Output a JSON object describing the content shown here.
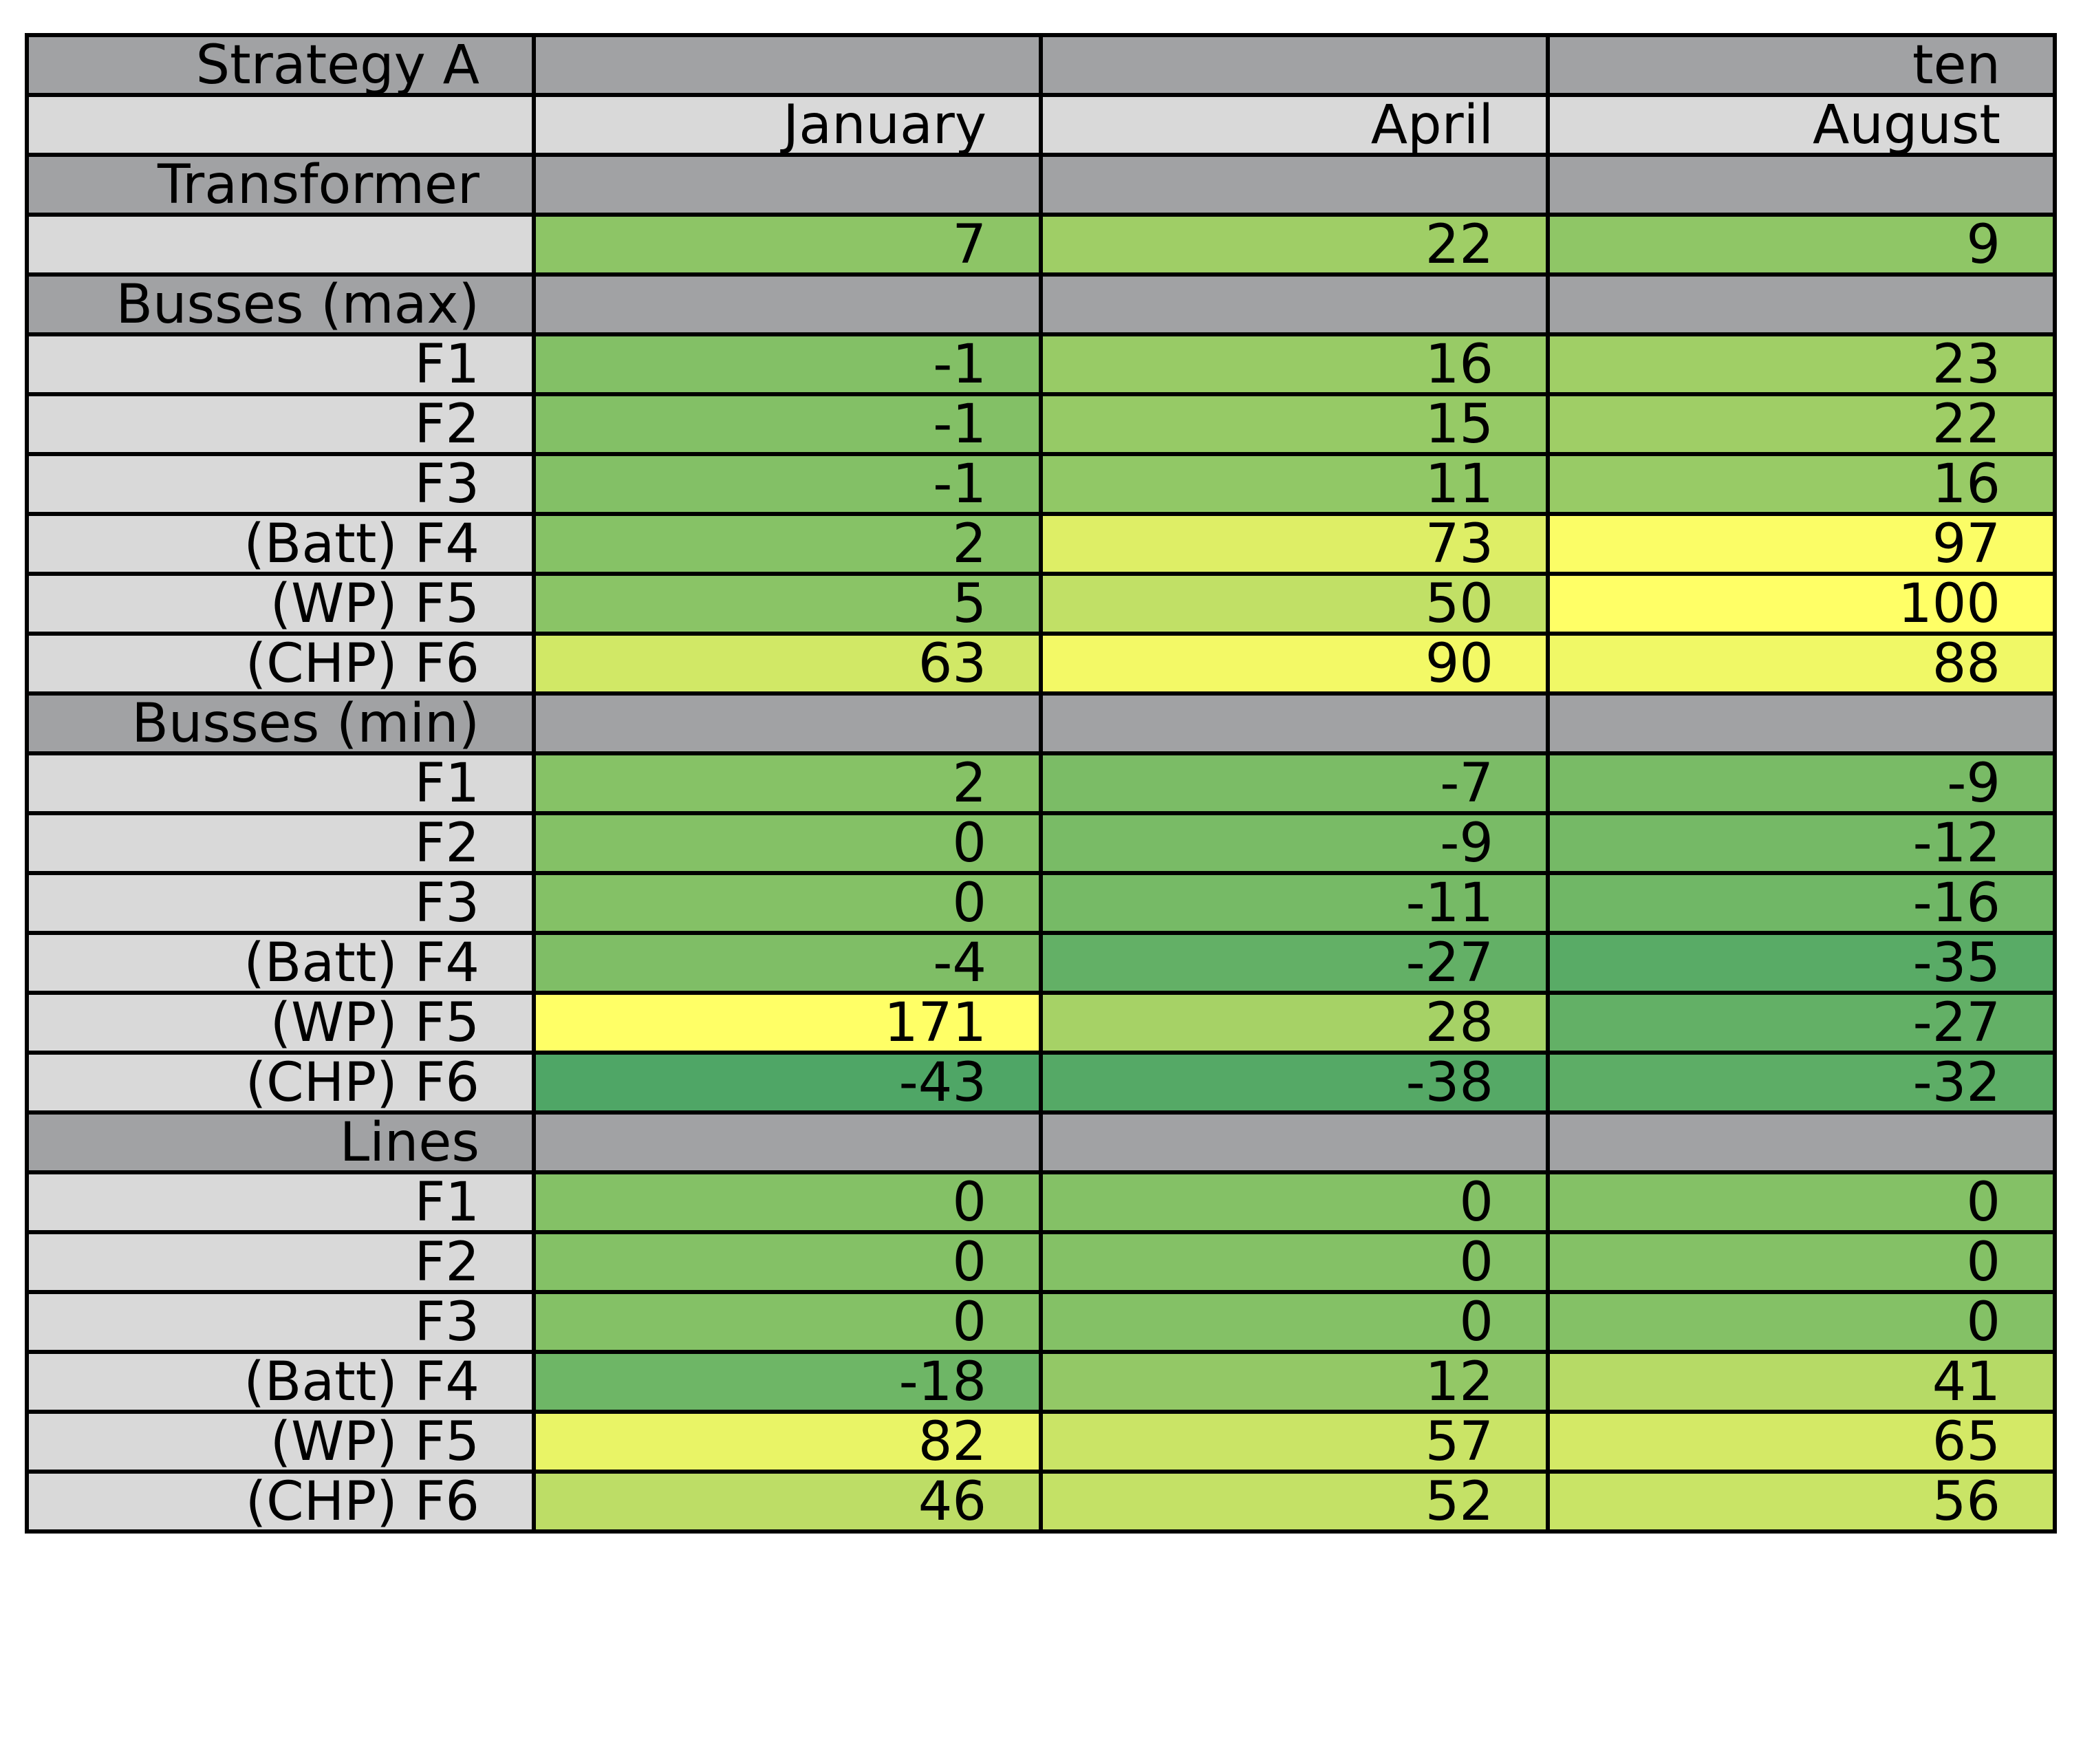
{
  "chart_data": {
    "type": "table",
    "header": {
      "title": "Strategy A",
      "group_labels": [
        "",
        "",
        "ten"
      ],
      "columns": [
        "January",
        "April",
        "August"
      ]
    },
    "rows": [
      {
        "kind": "section",
        "label": "Transformer"
      },
      {
        "kind": "data",
        "label": "",
        "values": [
          7,
          22,
          9
        ]
      },
      {
        "kind": "section",
        "label": "Busses (max)"
      },
      {
        "kind": "data",
        "label": "F1",
        "values": [
          -1,
          16,
          23
        ]
      },
      {
        "kind": "data",
        "label": "F2",
        "values": [
          -1,
          15,
          22
        ]
      },
      {
        "kind": "data",
        "label": "F3",
        "values": [
          -1,
          11,
          16
        ]
      },
      {
        "kind": "data",
        "label": "(Batt) F4",
        "values": [
          2,
          73,
          97
        ]
      },
      {
        "kind": "data",
        "label": "(WP) F5",
        "values": [
          5,
          50,
          100
        ]
      },
      {
        "kind": "data",
        "label": "(CHP) F6",
        "values": [
          63,
          90,
          88
        ]
      },
      {
        "kind": "section",
        "label": "Busses (min)"
      },
      {
        "kind": "data",
        "label": "F1",
        "values": [
          2,
          -7,
          -9
        ]
      },
      {
        "kind": "data",
        "label": "F2",
        "values": [
          0,
          -9,
          -12
        ]
      },
      {
        "kind": "data",
        "label": "F3",
        "values": [
          0,
          -11,
          -16
        ]
      },
      {
        "kind": "data",
        "label": "(Batt) F4",
        "values": [
          -4,
          -27,
          -35
        ]
      },
      {
        "kind": "data",
        "label": "(WP) F5",
        "values": [
          171,
          28,
          -27
        ]
      },
      {
        "kind": "data",
        "label": "(CHP) F6",
        "values": [
          -43,
          -38,
          -32
        ]
      },
      {
        "kind": "section",
        "label": "Lines"
      },
      {
        "kind": "data",
        "label": "F1",
        "values": [
          0,
          0,
          0
        ]
      },
      {
        "kind": "data",
        "label": "F2",
        "values": [
          0,
          0,
          0
        ]
      },
      {
        "kind": "data",
        "label": "F3",
        "values": [
          0,
          0,
          0
        ]
      },
      {
        "kind": "data",
        "label": "(Batt) F4",
        "values": [
          -18,
          12,
          41
        ]
      },
      {
        "kind": "data",
        "label": "(WP) F5",
        "values": [
          82,
          57,
          65
        ]
      },
      {
        "kind": "data",
        "label": "(CHP) F6",
        "values": [
          46,
          52,
          56
        ]
      }
    ],
    "colorscale": {
      "name": "summer",
      "low_color": "#4fa666",
      "high_color": "#ffff66",
      "clip": [
        -43,
        100
      ]
    },
    "colors": {
      "section_bg": "#a1a2a4",
      "label_bg": "#d9d9d9",
      "grid": "#000000"
    }
  }
}
